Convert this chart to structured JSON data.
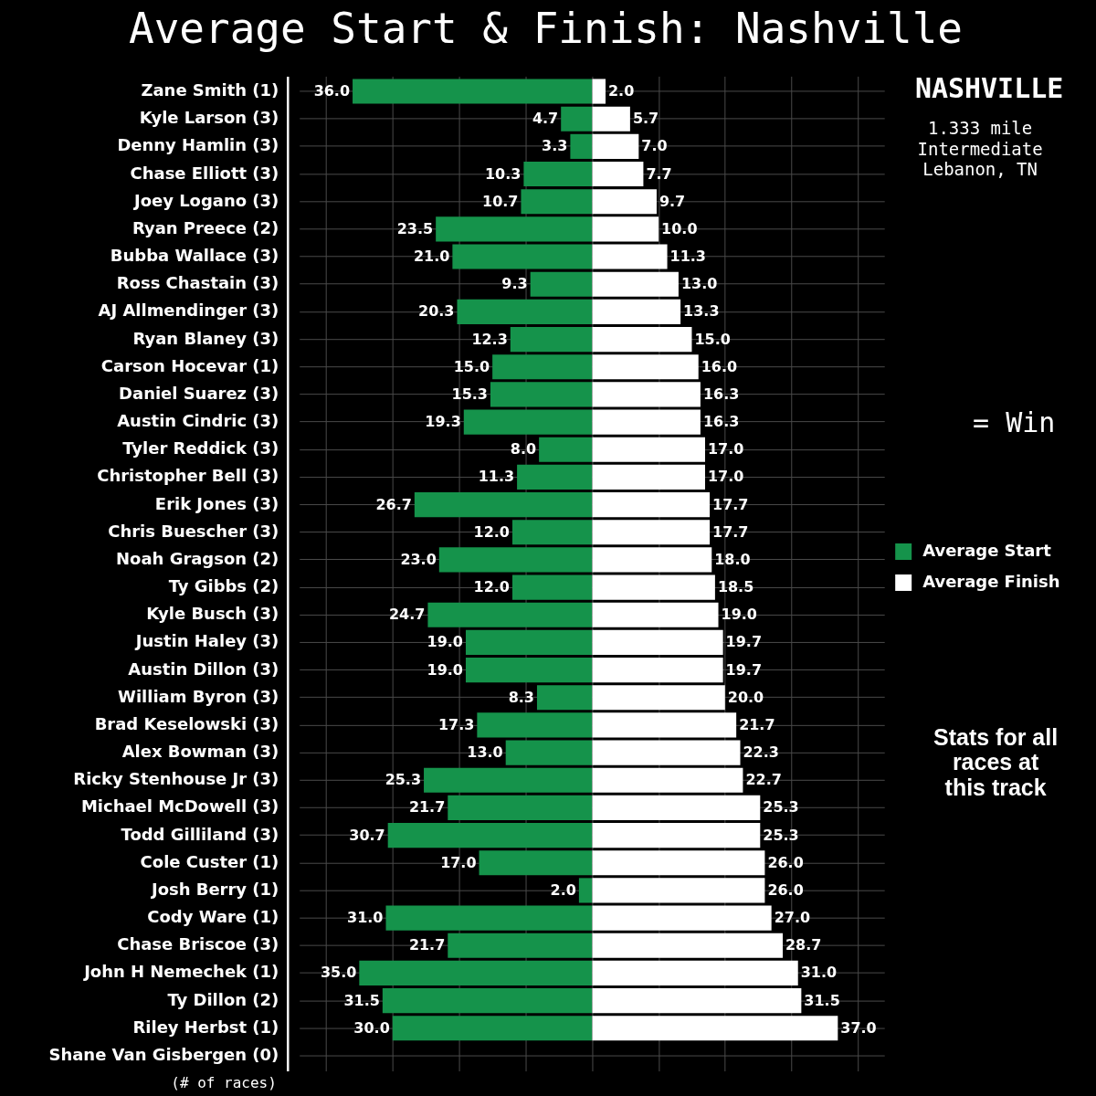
{
  "chart_data": [
    {
      "type": "bar",
      "orientation": "horizontal",
      "title": "Average Start & Finish: Nashville",
      "categories": [
        "Zane Smith (1)",
        "Kyle Larson (3)",
        "Denny Hamlin (3)",
        "Chase Elliott (3)",
        "Joey Logano (3)",
        "Ryan Preece (2)",
        "Bubba Wallace (3)",
        "Ross Chastain (3)",
        "AJ Allmendinger (3)",
        "Ryan Blaney (3)",
        "Carson Hocevar (1)",
        "Daniel Suarez (3)",
        "Austin Cindric (3)",
        "Tyler Reddick (3)",
        "Christopher Bell (3)",
        "Erik Jones (3)",
        "Chris Buescher (3)",
        "Noah Gragson (2)",
        "Ty Gibbs (2)",
        "Kyle Busch (3)",
        "Justin Haley (3)",
        "Austin Dillon (3)",
        "William Byron (3)",
        "Brad Keselowski (3)",
        "Alex Bowman (3)",
        "Ricky Stenhouse Jr (3)",
        "Michael McDowell (3)",
        "Todd Gilliland (3)",
        "Cole Custer (1)",
        "Josh Berry (1)",
        "Cody Ware (1)",
        "Chase Briscoe (3)",
        "John H Nemechek (1)",
        "Ty Dillon (2)",
        "Riley Herbst (1)",
        "Shane Van Gisbergen (0)"
      ],
      "series": [
        {
          "name": "Average Start",
          "color": "#15934b",
          "values": [
            36.0,
            4.7,
            3.3,
            10.3,
            10.7,
            23.5,
            21.0,
            9.3,
            20.3,
            12.3,
            15.0,
            15.3,
            19.3,
            8.0,
            11.3,
            26.7,
            12.0,
            23.0,
            12.0,
            24.7,
            19.0,
            19.0,
            8.3,
            17.3,
            13.0,
            25.3,
            21.7,
            30.7,
            17.0,
            2.0,
            31.0,
            21.7,
            35.0,
            31.5,
            30.0,
            null
          ],
          "value_labels": [
            "36.0",
            "4.7",
            "3.3",
            "10.3",
            "10.7",
            "23.5",
            "21.0",
            "9.3",
            "20.3",
            "12.3",
            "15.0",
            "15.3",
            "19.3",
            "8.0",
            "11.3",
            "26.7",
            "12.0",
            "23.0",
            "12.0",
            "24.7",
            "19.0",
            "19.0",
            "8.3",
            "17.3",
            "13.0",
            "25.3",
            "21.7",
            "30.7",
            "17.0",
            "2.0",
            "31.0",
            "21.7",
            "35.0",
            "31.5",
            "30.0",
            null
          ]
        }
      ],
      "xlim": [
        44,
        0
      ],
      "xticks": [
        {
          "value": 40,
          "label": null
        },
        {
          "value": 30,
          "label": null
        },
        {
          "value": 20,
          "label": null
        },
        {
          "value": 10,
          "label": null
        }
      ],
      "tick_labels": "y",
      "grid": true,
      "legend": "right",
      "annotations": [
        "(# of races)"
      ]
    },
    {
      "type": "bar",
      "orientation": "horizontal",
      "categories": [
        null,
        null,
        null,
        null,
        null,
        null,
        null,
        null,
        null,
        null,
        null,
        null,
        null,
        null,
        null,
        null,
        null,
        null,
        null,
        null,
        null,
        null,
        null,
        null,
        null,
        null,
        null,
        null,
        null,
        null,
        null,
        null,
        null,
        null,
        null,
        null
      ],
      "series": [
        {
          "name": "Average Finish",
          "color": "#ffffff",
          "values": [
            2.0,
            5.7,
            7.0,
            7.7,
            9.7,
            10.0,
            11.3,
            13.0,
            13.3,
            15.0,
            16.0,
            16.3,
            16.3,
            17.0,
            17.0,
            17.7,
            17.7,
            18.0,
            18.5,
            19.0,
            19.7,
            19.7,
            20.0,
            21.7,
            22.3,
            22.7,
            25.3,
            25.3,
            26.0,
            26.0,
            27.0,
            28.7,
            31.0,
            31.5,
            37.0,
            null
          ],
          "value_labels": [
            "2.0",
            "5.7",
            "7.0",
            "7.7",
            "9.7",
            "10.0",
            "11.3",
            "13.0",
            "13.3",
            "15.0",
            "16.0",
            "16.3",
            "16.3",
            "17.0",
            "17.0",
            "17.7",
            "17.7",
            "18.0",
            "18.5",
            "19.0",
            "19.7",
            "19.7",
            "20.0",
            "21.7",
            "22.3",
            "22.7",
            "25.3",
            "25.3",
            "26.0",
            "26.0",
            "27.0",
            "28.7",
            "31.0",
            "31.5",
            "37.0",
            null
          ]
        }
      ],
      "xlim": [
        0,
        44
      ],
      "xticks": [
        {
          "value": 0,
          "label": null
        },
        {
          "value": 10,
          "label": null
        },
        {
          "value": 20,
          "label": null
        },
        {
          "value": 30,
          "label": null
        },
        {
          "value": 40,
          "label": null
        }
      ],
      "tick_labels": false,
      "grid": true,
      "legend": "right",
      "annotations": [
        "NASHVILLE",
        "1.333 mile\nIntermediate\nLebanon, TN",
        "= Win",
        "Stats for all\nraces at\nthis track"
      ]
    }
  ]
}
